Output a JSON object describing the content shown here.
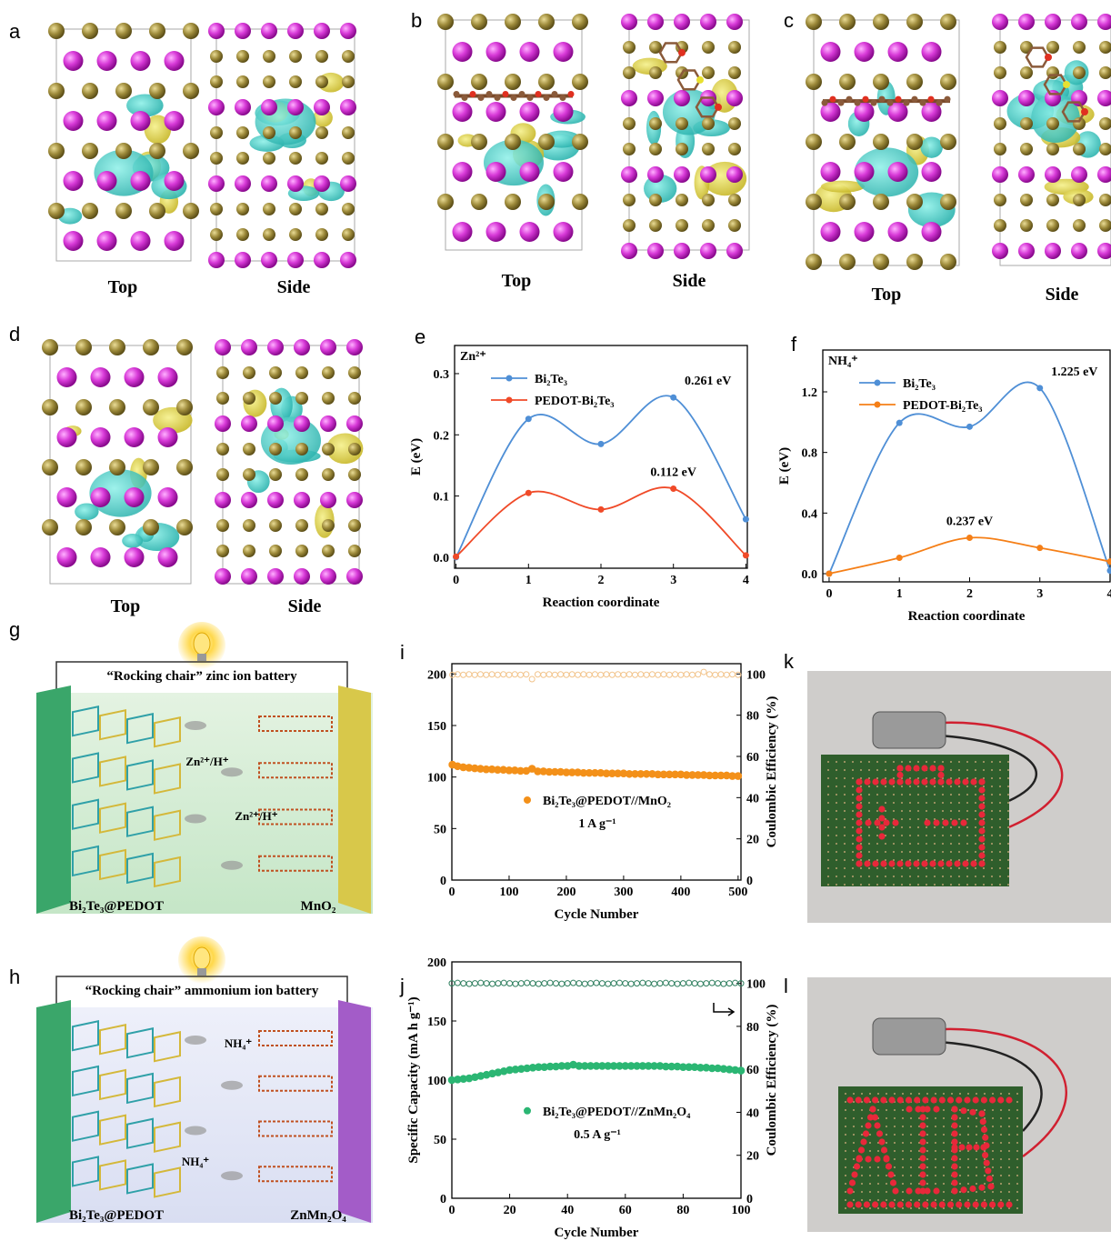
{
  "panel_labels": [
    "a",
    "b",
    "c",
    "d",
    "e",
    "f",
    "g",
    "h",
    "i",
    "j",
    "k",
    "l"
  ],
  "structures": [
    {
      "top": "Top",
      "side": "Side"
    },
    {
      "top": "Top",
      "side": "Side"
    },
    {
      "top": "Top",
      "side": "Side"
    },
    {
      "top": "Top",
      "side": "Side"
    }
  ],
  "battery_g": {
    "title": "“Rocking chair” zinc ion battery",
    "anode": "Bi₂Te₃@PEDOT",
    "cathode": "MnO₂",
    "ions": [
      "Zn²⁺/H⁺",
      "Zn²⁺/H⁺"
    ]
  },
  "battery_h": {
    "title": "“Rocking chair” ammonium ion battery",
    "anode": "Bi₂Te₃@PEDOT",
    "cathode": "ZnMn₂O₄",
    "ions": [
      "NH₄⁺",
      "NH₄⁺"
    ]
  },
  "chart_data": [
    {
      "type": "line",
      "legend_title": "Zn²⁺",
      "legend": "upper left",
      "x": [
        0,
        1,
        2,
        3,
        4
      ],
      "xlim": [
        -0.02,
        4.02
      ],
      "xticks": [
        0,
        1,
        2,
        3,
        4
      ],
      "ylim": [
        -0.018,
        0.346
      ],
      "yticks": [
        {
          "value": 0,
          "label": "0.0"
        },
        0.1,
        0.2,
        0.3
      ],
      "xlabel": "Reaction coordinate",
      "ylabel": "E (eV)",
      "series": [
        {
          "name": "Bi₂Te₃",
          "color": "#4f8fd6",
          "values": [
            0,
            0.226,
            0.185,
            0.261,
            0.062
          ],
          "value_labels": [
            null,
            null,
            null,
            "0.261 eV",
            null
          ]
        },
        {
          "name": "PEDOT-Bi₂Te₃",
          "color": "#f04a28",
          "values": [
            0.001,
            0.105,
            0.078,
            0.112,
            0.003
          ],
          "value_labels": [
            null,
            null,
            null,
            "0.112 eV",
            null
          ]
        }
      ]
    },
    {
      "type": "line",
      "legend_title": "NH₄⁺",
      "legend": "upper left",
      "x": [
        0,
        1,
        2,
        3,
        4
      ],
      "xlim": [
        -0.09,
        4.0
      ],
      "xticks": [
        0,
        1,
        2,
        3,
        4
      ],
      "ylim": [
        -0.054,
        1.476
      ],
      "yticks": [
        {
          "value": 0,
          "label": "0.0"
        },
        0.4,
        0.8,
        1.2
      ],
      "xlabel": "Reaction coordinate",
      "ylabel": "E (eV)",
      "series": [
        {
          "name": "Bi₂Te₃",
          "color": "#4f8fd6",
          "values": [
            0,
            0.995,
            0.97,
            1.225,
            0.02
          ],
          "value_labels": [
            null,
            null,
            null,
            "1.225 eV",
            null
          ]
        },
        {
          "name": "PEDOT-Bi₂Te₃",
          "color": "#f57f17",
          "values": [
            0,
            0.105,
            0.237,
            0.17,
            0.08
          ],
          "value_labels": [
            null,
            null,
            "0.237 eV",
            null,
            null
          ]
        }
      ]
    },
    {
      "type": "scatter",
      "legend": "center",
      "annotation": "1 A g⁻¹",
      "x": [
        1,
        10,
        20,
        30,
        40,
        50,
        60,
        70,
        80,
        90,
        100,
        110,
        120,
        130,
        140,
        150,
        160,
        170,
        180,
        190,
        200,
        210,
        220,
        230,
        240,
        250,
        260,
        270,
        280,
        290,
        300,
        310,
        320,
        330,
        340,
        350,
        360,
        370,
        380,
        390,
        400,
        410,
        420,
        430,
        440,
        450,
        460,
        470,
        480,
        490,
        500
      ],
      "xlim": [
        0,
        505
      ],
      "xticks": [
        0,
        100,
        200,
        300,
        400,
        500
      ],
      "ylim": [
        0,
        210
      ],
      "yticks": [
        0,
        50,
        100,
        150,
        200
      ],
      "y2lim": [
        0,
        105
      ],
      "y2ticks": [
        0,
        20,
        40,
        60,
        80,
        100
      ],
      "xlabel": "Cycle Number",
      "y2label": "Coulombic Efficiency (%)",
      "series": [
        {
          "name": "Bi₂Te₃@PEDOT//MnO₂",
          "color": "#f39019",
          "marker": "filled",
          "values": [
            112,
            110.5,
            109.5,
            109,
            108.5,
            108,
            107.5,
            107.5,
            107,
            107,
            106.5,
            106.5,
            106,
            106,
            108,
            105.5,
            105.5,
            105,
            105,
            105,
            104.5,
            104.5,
            104.5,
            104,
            104,
            104,
            104,
            103.5,
            103.5,
            103.5,
            103.5,
            103,
            103,
            103,
            103,
            103,
            102.5,
            102.5,
            102.5,
            102.5,
            102.5,
            102,
            102,
            102,
            102,
            101.5,
            101.5,
            101.5,
            101.5,
            101,
            101
          ]
        },
        {
          "color": "#f2c48c",
          "marker": "hollow",
          "axis": "y2",
          "values": [
            99.6,
            99.8,
            99.6,
            99.8,
            99.6,
            99.8,
            99.6,
            99.8,
            99.6,
            99.8,
            99.6,
            99.8,
            99.6,
            99.8,
            97.5,
            99.8,
            99.6,
            99.8,
            99.6,
            99.8,
            99.6,
            99.8,
            99.6,
            99.8,
            99.6,
            99.8,
            99.6,
            99.8,
            99.6,
            99.8,
            99.6,
            99.8,
            99.6,
            99.8,
            99.6,
            99.8,
            99.6,
            99.8,
            99.6,
            99.8,
            99.6,
            99.8,
            99.6,
            99.8,
            101,
            99.8,
            99.6,
            99.8,
            99.6,
            99.8,
            99.6
          ]
        }
      ]
    },
    {
      "type": "scatter",
      "legend": "center",
      "annotation": "0.5 A g⁻¹",
      "x": [
        0,
        2,
        4,
        6,
        8,
        10,
        12,
        14,
        16,
        18,
        20,
        22,
        24,
        26,
        28,
        30,
        32,
        34,
        36,
        38,
        40,
        42,
        44,
        46,
        48,
        50,
        52,
        54,
        56,
        58,
        60,
        62,
        64,
        66,
        68,
        70,
        72,
        74,
        76,
        78,
        80,
        82,
        84,
        86,
        88,
        90,
        92,
        94,
        96,
        98,
        100
      ],
      "xlim": [
        0,
        100
      ],
      "xticks": [
        0,
        20,
        40,
        60,
        80,
        100
      ],
      "ylim": [
        0,
        200
      ],
      "yticks": [
        0,
        50,
        100,
        150,
        200
      ],
      "y2lim": [
        0,
        110
      ],
      "y2ticks": [
        0,
        20,
        40,
        60,
        80,
        100
      ],
      "xlabel": "Cycle Number",
      "ylabel": "Specific Capacity (mA h g⁻¹)",
      "y2label": "Coulombic Efficiency (%)",
      "series": [
        {
          "name": "Bi₂Te₃@PEDOT//ZnMn₂O₄",
          "color": "#2bb673",
          "marker": "filled",
          "values": [
            100,
            100.5,
            101,
            101.5,
            102.5,
            103.5,
            104.5,
            105.5,
            106.5,
            107.5,
            108.5,
            109,
            109.5,
            110,
            110.5,
            111,
            111,
            111.5,
            111.5,
            112,
            112,
            113,
            112,
            112,
            112,
            112,
            112,
            112,
            112,
            112,
            112,
            112,
            112,
            112,
            112,
            112,
            112,
            111.5,
            111.5,
            111.5,
            111,
            111,
            111,
            110.5,
            110.5,
            110,
            110,
            109.5,
            109,
            108.5,
            108
          ]
        },
        {
          "color": "#2f7f5f",
          "marker": "hollow",
          "axis": "y2",
          "values": [
            100,
            100.2,
            100,
            99.8,
            100,
            100.2,
            100,
            99.8,
            100,
            100.2,
            100,
            99.8,
            100,
            100.2,
            100,
            99.8,
            100,
            100.2,
            100,
            99.8,
            100,
            100.2,
            100,
            99.8,
            100,
            100.2,
            100,
            99.8,
            100,
            100.2,
            100,
            99.8,
            100,
            100.2,
            100,
            99.8,
            100,
            100.2,
            100,
            99.8,
            100,
            100.2,
            100,
            99.8,
            100,
            100.2,
            100,
            99.8,
            100,
            100.2,
            100
          ]
        }
      ]
    }
  ]
}
